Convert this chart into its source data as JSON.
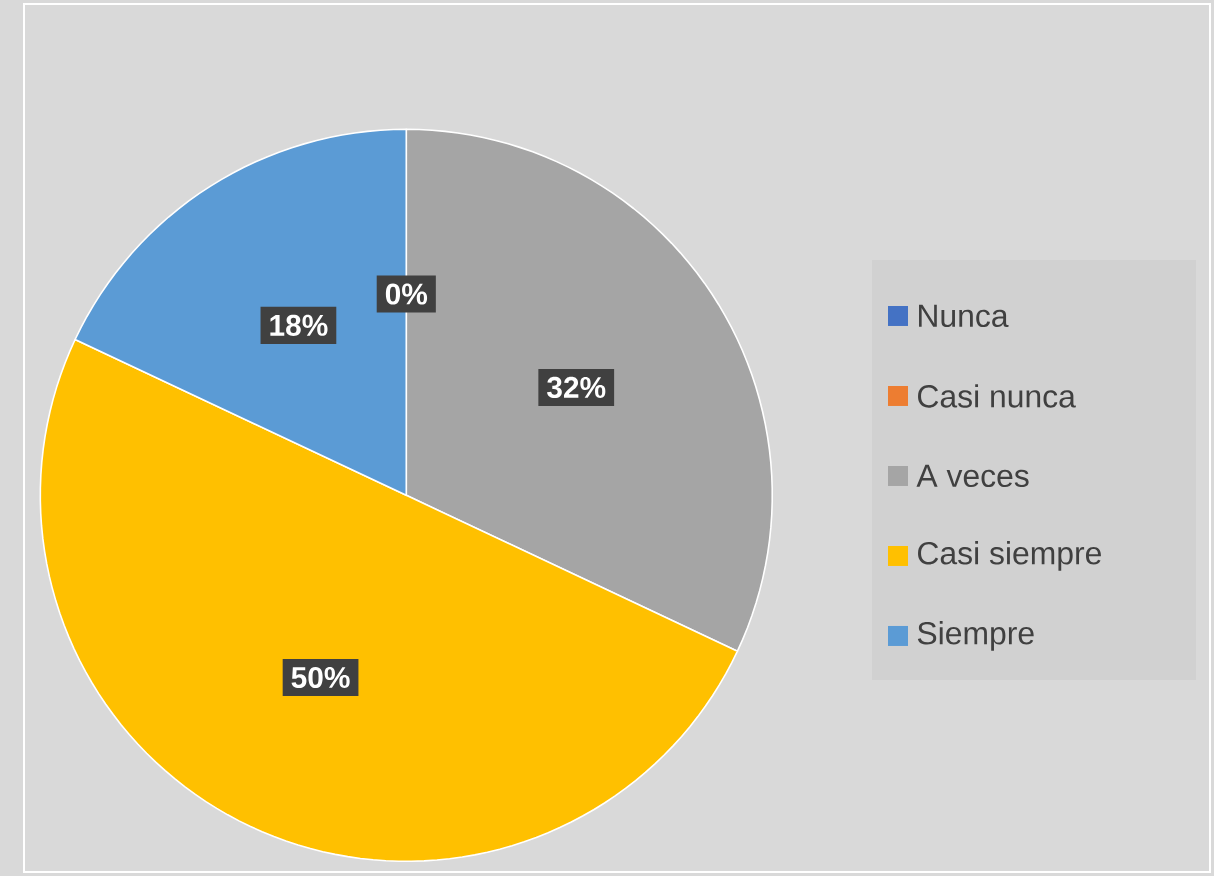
{
  "chart_data": {
    "type": "pie",
    "categories": [
      "Nunca",
      "Casi nunca",
      "A veces",
      "Casi siempre",
      "Siempre"
    ],
    "values": [
      0,
      0,
      32,
      50,
      18
    ],
    "colors": [
      "#4472c4",
      "#ed7d31",
      "#a5a5a5",
      "#ffc000",
      "#5b9bd5"
    ],
    "value_labels": [
      "0%",
      null,
      "32%",
      "50%",
      "18%"
    ],
    "legend": "right"
  }
}
